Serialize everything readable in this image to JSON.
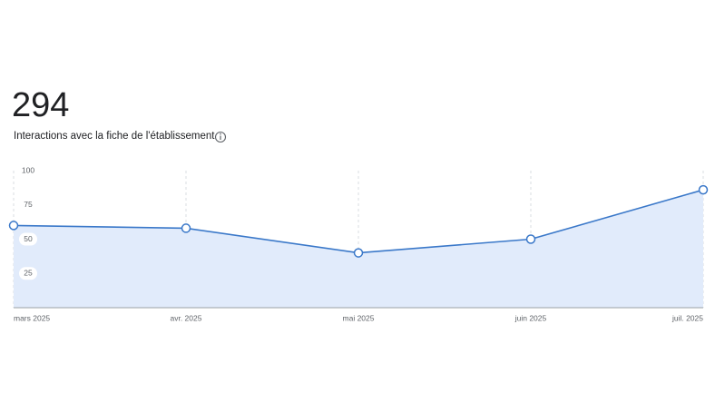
{
  "chart_data": {
    "type": "area",
    "total": 294,
    "title": "Interactions avec la fiche de l'établissement",
    "categories": [
      "mars 2025",
      "avr. 2025",
      "mai 2025",
      "juin 2025",
      "juil. 2025"
    ],
    "values": [
      60,
      58,
      40,
      50,
      86
    ],
    "color": "#3a78c9",
    "fill": "#e1ebfb",
    "ylim": [
      0,
      100
    ],
    "yticks": [
      25,
      50,
      75,
      100
    ]
  }
}
